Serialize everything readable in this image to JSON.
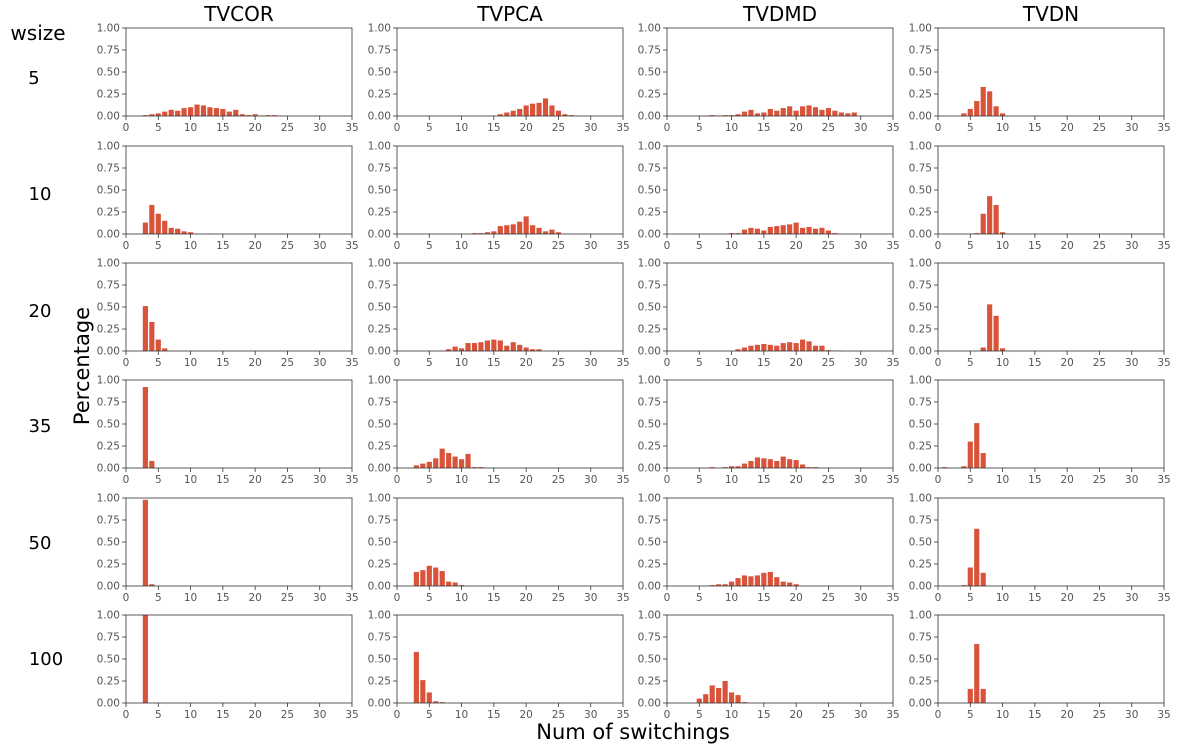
{
  "figure": {
    "row_header": "wsize",
    "xlabel": "Num of switchings",
    "ylabel": "Percentage",
    "columns": [
      "TVCOR",
      "TVPCA",
      "TVDMD",
      "TVDN"
    ],
    "rows": [
      "5",
      "10",
      "20",
      "35",
      "50",
      "100"
    ],
    "bar_color": "#d9533a"
  },
  "chart_data": [
    {
      "type": "bar",
      "title": "TVCOR",
      "row": "5",
      "xlim": [
        0,
        35
      ],
      "ylim": [
        0,
        1
      ],
      "xticks": [
        "0",
        "5",
        "10",
        "15",
        "20",
        "25",
        "30",
        "35"
      ],
      "yticks": [
        "0.00",
        "0.25",
        "0.50",
        "0.75",
        "1.00"
      ],
      "x": [
        3,
        4,
        5,
        6,
        7,
        8,
        9,
        10,
        11,
        12,
        13,
        14,
        15,
        16,
        17,
        18,
        19,
        20,
        21,
        22,
        23
      ],
      "values": [
        0.01,
        0.02,
        0.03,
        0.05,
        0.07,
        0.06,
        0.09,
        0.1,
        0.13,
        0.12,
        0.1,
        0.09,
        0.08,
        0.05,
        0.07,
        0.02,
        0.01,
        0.02,
        0.005,
        0.01,
        0.01
      ]
    },
    {
      "type": "bar",
      "title": "TVPCA",
      "row": "5",
      "xlim": [
        0,
        35
      ],
      "ylim": [
        0,
        1
      ],
      "xticks": [
        "0",
        "5",
        "10",
        "15",
        "20",
        "25",
        "30",
        "35"
      ],
      "yticks": [
        "0.00",
        "0.25",
        "0.50",
        "0.75",
        "1.00"
      ],
      "x": [
        16,
        17,
        18,
        19,
        20,
        21,
        22,
        23,
        24,
        25,
        26,
        27,
        28
      ],
      "values": [
        0.02,
        0.04,
        0.06,
        0.08,
        0.12,
        0.14,
        0.15,
        0.2,
        0.12,
        0.06,
        0.02,
        0.01,
        0.005
      ]
    },
    {
      "type": "bar",
      "title": "TVDMD",
      "row": "5",
      "xlim": [
        0,
        35
      ],
      "ylim": [
        0,
        1
      ],
      "xticks": [
        "0",
        "5",
        "10",
        "15",
        "20",
        "25",
        "30",
        "35"
      ],
      "yticks": [
        "0.00",
        "0.25",
        "0.50",
        "0.75",
        "1.00"
      ],
      "x": [
        6,
        7,
        8,
        9,
        10,
        11,
        12,
        13,
        14,
        15,
        16,
        17,
        18,
        19,
        20,
        21,
        22,
        23,
        24,
        25,
        26,
        27,
        28,
        29
      ],
      "values": [
        0.005,
        0.01,
        0.005,
        0.01,
        0.01,
        0.02,
        0.05,
        0.07,
        0.03,
        0.04,
        0.08,
        0.06,
        0.09,
        0.11,
        0.06,
        0.11,
        0.12,
        0.1,
        0.07,
        0.09,
        0.06,
        0.04,
        0.03,
        0.04
      ]
    },
    {
      "type": "bar",
      "title": "TVDN",
      "row": "5",
      "xlim": [
        0,
        35
      ],
      "ylim": [
        0,
        1
      ],
      "xticks": [
        "0",
        "5",
        "10",
        "15",
        "20",
        "25",
        "30",
        "35"
      ],
      "yticks": [
        "0.00",
        "0.25",
        "0.50",
        "0.75",
        "1.00"
      ],
      "x": [
        4,
        5,
        6,
        7,
        8,
        9,
        10
      ],
      "values": [
        0.03,
        0.08,
        0.17,
        0.33,
        0.28,
        0.11,
        0.03
      ]
    },
    {
      "type": "bar",
      "title": "TVCOR",
      "row": "10",
      "xlim": [
        0,
        35
      ],
      "ylim": [
        0,
        1
      ],
      "xticks": [
        "0",
        "5",
        "10",
        "15",
        "20",
        "25",
        "30",
        "35"
      ],
      "yticks": [
        "0.00",
        "0.25",
        "0.50",
        "0.75",
        "1.00"
      ],
      "x": [
        3,
        4,
        5,
        6,
        7,
        8,
        9,
        10,
        11,
        13
      ],
      "values": [
        0.13,
        0.33,
        0.23,
        0.15,
        0.07,
        0.06,
        0.03,
        0.02,
        0.005,
        0.005
      ]
    },
    {
      "type": "bar",
      "title": "TVPCA",
      "row": "10",
      "xlim": [
        0,
        35
      ],
      "ylim": [
        0,
        1
      ],
      "xticks": [
        "0",
        "5",
        "10",
        "15",
        "20",
        "25",
        "30",
        "35"
      ],
      "yticks": [
        "0.00",
        "0.25",
        "0.50",
        "0.75",
        "1.00"
      ],
      "x": [
        12,
        13,
        14,
        15,
        16,
        17,
        18,
        19,
        20,
        21,
        22,
        23,
        24,
        25
      ],
      "values": [
        0.01,
        0.01,
        0.02,
        0.03,
        0.09,
        0.1,
        0.11,
        0.14,
        0.2,
        0.1,
        0.07,
        0.03,
        0.05,
        0.02
      ]
    },
    {
      "type": "bar",
      "title": "TVDMD",
      "row": "10",
      "xlim": [
        0,
        35
      ],
      "ylim": [
        0,
        1
      ],
      "xticks": [
        "0",
        "5",
        "10",
        "15",
        "20",
        "25",
        "30",
        "35"
      ],
      "yticks": [
        "0.00",
        "0.25",
        "0.50",
        "0.75",
        "1.00"
      ],
      "x": [
        10,
        11,
        12,
        13,
        14,
        15,
        16,
        17,
        18,
        19,
        20,
        21,
        22,
        23,
        24,
        25,
        26
      ],
      "values": [
        0.01,
        0.01,
        0.05,
        0.07,
        0.06,
        0.04,
        0.08,
        0.09,
        0.1,
        0.11,
        0.13,
        0.07,
        0.08,
        0.06,
        0.07,
        0.04,
        0.01
      ]
    },
    {
      "type": "bar",
      "title": "TVDN",
      "row": "10",
      "xlim": [
        0,
        35
      ],
      "ylim": [
        0,
        1
      ],
      "xticks": [
        "0",
        "5",
        "10",
        "15",
        "20",
        "25",
        "30",
        "35"
      ],
      "yticks": [
        "0.00",
        "0.25",
        "0.50",
        "0.75",
        "1.00"
      ],
      "x": [
        6,
        7,
        8,
        9,
        10
      ],
      "values": [
        0.01,
        0.23,
        0.43,
        0.33,
        0.02
      ]
    },
    {
      "type": "bar",
      "title": "TVCOR",
      "row": "20",
      "xlim": [
        0,
        35
      ],
      "ylim": [
        0,
        1
      ],
      "xticks": [
        "0",
        "5",
        "10",
        "15",
        "20",
        "25",
        "30",
        "35"
      ],
      "yticks": [
        "0.00",
        "0.25",
        "0.50",
        "0.75",
        "1.00"
      ],
      "x": [
        3,
        4,
        5,
        6
      ],
      "values": [
        0.51,
        0.33,
        0.13,
        0.03
      ]
    },
    {
      "type": "bar",
      "title": "TVPCA",
      "row": "20",
      "xlim": [
        0,
        35
      ],
      "ylim": [
        0,
        1
      ],
      "xticks": [
        "0",
        "5",
        "10",
        "15",
        "20",
        "25",
        "30",
        "35"
      ],
      "yticks": [
        "0.00",
        "0.25",
        "0.50",
        "0.75",
        "1.00"
      ],
      "x": [
        7,
        8,
        9,
        10,
        11,
        12,
        13,
        14,
        15,
        16,
        17,
        18,
        19,
        20,
        21,
        22
      ],
      "values": [
        0.005,
        0.02,
        0.05,
        0.03,
        0.09,
        0.09,
        0.1,
        0.12,
        0.13,
        0.12,
        0.06,
        0.1,
        0.07,
        0.04,
        0.02,
        0.02
      ]
    },
    {
      "type": "bar",
      "title": "TVDMD",
      "row": "20",
      "xlim": [
        0,
        35
      ],
      "ylim": [
        0,
        1
      ],
      "xticks": [
        "0",
        "5",
        "10",
        "15",
        "20",
        "25",
        "30",
        "35"
      ],
      "yticks": [
        "0.00",
        "0.25",
        "0.50",
        "0.75",
        "1.00"
      ],
      "x": [
        11,
        12,
        13,
        14,
        15,
        16,
        17,
        18,
        19,
        20,
        21,
        22,
        23,
        24,
        25,
        26,
        27
      ],
      "values": [
        0.02,
        0.04,
        0.06,
        0.07,
        0.08,
        0.07,
        0.06,
        0.09,
        0.1,
        0.09,
        0.13,
        0.11,
        0.06,
        0.06,
        0.01,
        0.005,
        0.005
      ]
    },
    {
      "type": "bar",
      "title": "TVDN",
      "row": "20",
      "xlim": [
        0,
        35
      ],
      "ylim": [
        0,
        1
      ],
      "xticks": [
        "0",
        "5",
        "10",
        "15",
        "20",
        "25",
        "30",
        "35"
      ],
      "yticks": [
        "0.00",
        "0.25",
        "0.50",
        "0.75",
        "1.00"
      ],
      "x": [
        7,
        8,
        9,
        10
      ],
      "values": [
        0.04,
        0.53,
        0.4,
        0.03
      ]
    },
    {
      "type": "bar",
      "title": "TVCOR",
      "row": "35",
      "xlim": [
        0,
        35
      ],
      "ylim": [
        0,
        1
      ],
      "xticks": [
        "0",
        "5",
        "10",
        "15",
        "20",
        "25",
        "30",
        "35"
      ],
      "yticks": [
        "0.00",
        "0.25",
        "0.50",
        "0.75",
        "1.00"
      ],
      "x": [
        3,
        4
      ],
      "values": [
        0.92,
        0.08
      ]
    },
    {
      "type": "bar",
      "title": "TVPCA",
      "row": "35",
      "xlim": [
        0,
        35
      ],
      "ylim": [
        0,
        1
      ],
      "xticks": [
        "0",
        "5",
        "10",
        "15",
        "20",
        "25",
        "30",
        "35"
      ],
      "yticks": [
        "0.00",
        "0.25",
        "0.50",
        "0.75",
        "1.00"
      ],
      "x": [
        3,
        4,
        5,
        6,
        7,
        8,
        9,
        10,
        11,
        12,
        13
      ],
      "values": [
        0.03,
        0.05,
        0.07,
        0.11,
        0.22,
        0.17,
        0.13,
        0.1,
        0.16,
        0.01,
        0.01
      ]
    },
    {
      "type": "bar",
      "title": "TVDMD",
      "row": "35",
      "xlim": [
        0,
        35
      ],
      "ylim": [
        0,
        1
      ],
      "xticks": [
        "0",
        "5",
        "10",
        "15",
        "20",
        "25",
        "30",
        "35"
      ],
      "yticks": [
        "0.00",
        "0.25",
        "0.50",
        "0.75",
        "1.00"
      ],
      "x": [
        7,
        9,
        10,
        11,
        12,
        13,
        14,
        15,
        16,
        17,
        18,
        19,
        20,
        21,
        22,
        23
      ],
      "values": [
        0.01,
        0.01,
        0.02,
        0.02,
        0.05,
        0.08,
        0.12,
        0.11,
        0.1,
        0.08,
        0.13,
        0.1,
        0.09,
        0.04,
        0.01,
        0.01
      ]
    },
    {
      "type": "bar",
      "title": "TVDN",
      "row": "35",
      "xlim": [
        0,
        35
      ],
      "ylim": [
        0,
        1
      ],
      "xticks": [
        "0",
        "5",
        "10",
        "15",
        "20",
        "25",
        "30",
        "35"
      ],
      "yticks": [
        "0.00",
        "0.25",
        "0.50",
        "0.75",
        "1.00"
      ],
      "x": [
        1,
        4,
        5,
        6,
        7
      ],
      "values": [
        0.01,
        0.02,
        0.3,
        0.51,
        0.17
      ]
    },
    {
      "type": "bar",
      "title": "TVCOR",
      "row": "50",
      "xlim": [
        0,
        35
      ],
      "ylim": [
        0,
        1
      ],
      "xticks": [
        "0",
        "5",
        "10",
        "15",
        "20",
        "25",
        "30",
        "35"
      ],
      "yticks": [
        "0.00",
        "0.25",
        "0.50",
        "0.75",
        "1.00"
      ],
      "x": [
        3,
        4
      ],
      "values": [
        0.98,
        0.02
      ]
    },
    {
      "type": "bar",
      "title": "TVPCA",
      "row": "50",
      "xlim": [
        0,
        35
      ],
      "ylim": [
        0,
        1
      ],
      "xticks": [
        "0",
        "5",
        "10",
        "15",
        "20",
        "25",
        "30",
        "35"
      ],
      "yticks": [
        "0.00",
        "0.25",
        "0.50",
        "0.75",
        "1.00"
      ],
      "x": [
        3,
        4,
        5,
        6,
        7,
        8,
        9,
        10
      ],
      "values": [
        0.16,
        0.18,
        0.23,
        0.21,
        0.17,
        0.05,
        0.04,
        0.01
      ]
    },
    {
      "type": "bar",
      "title": "TVDMD",
      "row": "50",
      "xlim": [
        0,
        35
      ],
      "ylim": [
        0,
        1
      ],
      "xticks": [
        "0",
        "5",
        "10",
        "15",
        "20",
        "25",
        "30",
        "35"
      ],
      "yticks": [
        "0.00",
        "0.25",
        "0.50",
        "0.75",
        "1.00"
      ],
      "x": [
        7,
        8,
        9,
        10,
        11,
        12,
        13,
        14,
        15,
        16,
        17,
        18,
        19,
        20
      ],
      "values": [
        0.01,
        0.02,
        0.02,
        0.05,
        0.09,
        0.12,
        0.11,
        0.12,
        0.15,
        0.16,
        0.1,
        0.05,
        0.04,
        0.02
      ]
    },
    {
      "type": "bar",
      "title": "TVDN",
      "row": "50",
      "xlim": [
        0,
        35
      ],
      "ylim": [
        0,
        1
      ],
      "xticks": [
        "0",
        "5",
        "10",
        "15",
        "20",
        "25",
        "30",
        "35"
      ],
      "yticks": [
        "0.00",
        "0.25",
        "0.50",
        "0.75",
        "1.00"
      ],
      "x": [
        4,
        5,
        6,
        7
      ],
      "values": [
        0.01,
        0.21,
        0.65,
        0.15
      ]
    },
    {
      "type": "bar",
      "title": "TVCOR",
      "row": "100",
      "xlim": [
        0,
        35
      ],
      "ylim": [
        0,
        1
      ],
      "xticks": [
        "0",
        "5",
        "10",
        "15",
        "20",
        "25",
        "30",
        "35"
      ],
      "yticks": [
        "0.00",
        "0.25",
        "0.50",
        "0.75",
        "1.00"
      ],
      "x": [
        3
      ],
      "values": [
        1.0
      ]
    },
    {
      "type": "bar",
      "title": "TVPCA",
      "row": "100",
      "xlim": [
        0,
        35
      ],
      "ylim": [
        0,
        1
      ],
      "xticks": [
        "0",
        "5",
        "10",
        "15",
        "20",
        "25",
        "30",
        "35"
      ],
      "yticks": [
        "0.00",
        "0.25",
        "0.50",
        "0.75",
        "1.00"
      ],
      "x": [
        3,
        4,
        5,
        6,
        7
      ],
      "values": [
        0.58,
        0.26,
        0.12,
        0.02,
        0.01
      ]
    },
    {
      "type": "bar",
      "title": "TVDMD",
      "row": "100",
      "xlim": [
        0,
        35
      ],
      "ylim": [
        0,
        1
      ],
      "xticks": [
        "0",
        "5",
        "10",
        "15",
        "20",
        "25",
        "30",
        "35"
      ],
      "yticks": [
        "0.00",
        "0.25",
        "0.50",
        "0.75",
        "1.00"
      ],
      "x": [
        5,
        6,
        7,
        8,
        9,
        10,
        11,
        12
      ],
      "values": [
        0.05,
        0.1,
        0.2,
        0.17,
        0.25,
        0.12,
        0.09,
        0.01
      ]
    },
    {
      "type": "bar",
      "title": "TVDN",
      "row": "100",
      "xlim": [
        0,
        35
      ],
      "ylim": [
        0,
        1
      ],
      "xticks": [
        "0",
        "5",
        "10",
        "15",
        "20",
        "25",
        "30",
        "35"
      ],
      "yticks": [
        "0.00",
        "0.25",
        "0.50",
        "0.75",
        "1.00"
      ],
      "x": [
        5,
        6,
        7
      ],
      "values": [
        0.16,
        0.67,
        0.16
      ]
    }
  ]
}
